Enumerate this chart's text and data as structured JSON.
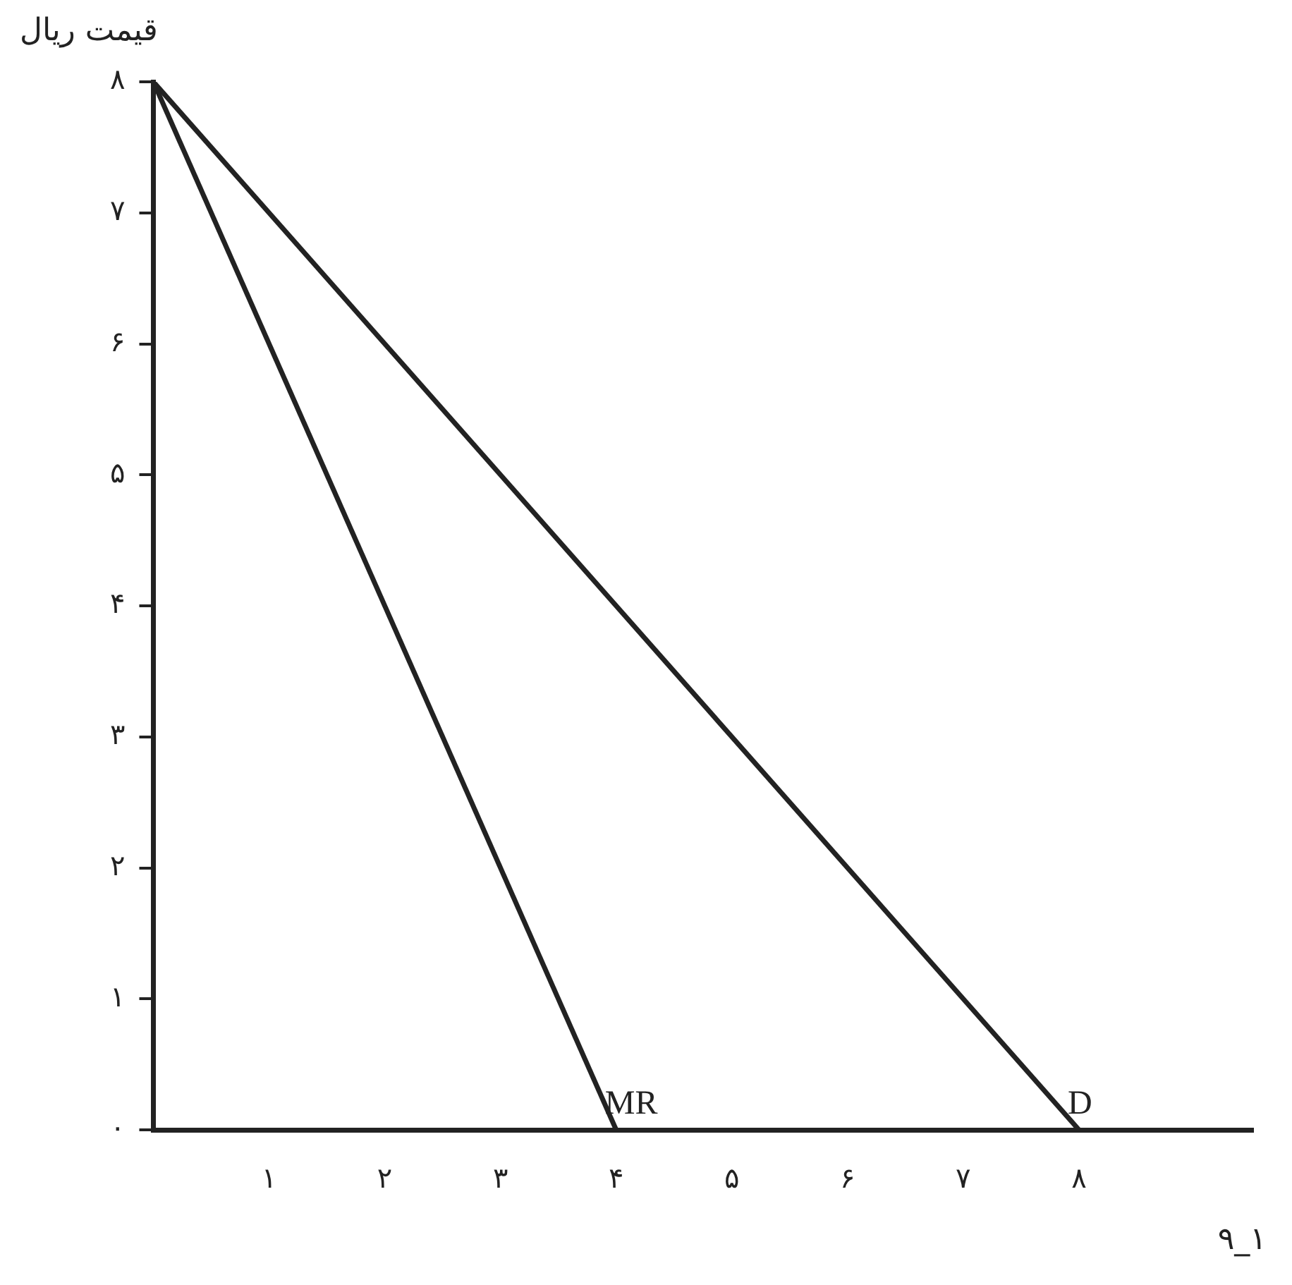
{
  "chart_data": {
    "type": "line",
    "ylabel": "قیمت ریال",
    "annotations": [
      "۹_۱"
    ],
    "xlim": [
      0,
      9.5
    ],
    "ylim": [
      0,
      8
    ],
    "xticks": [
      {
        "value": 0,
        "label": null
      },
      {
        "value": 1,
        "label": "۱"
      },
      {
        "value": 2,
        "label": "۲"
      },
      {
        "value": 3,
        "label": "۳"
      },
      {
        "value": 4,
        "label": "۴"
      },
      {
        "value": 5,
        "label": "۵"
      },
      {
        "value": 6,
        "label": "۶"
      },
      {
        "value": 7,
        "label": "۷"
      },
      {
        "value": 8,
        "label": "۸"
      }
    ],
    "yticks": [
      {
        "value": 0,
        "label": "۰"
      },
      {
        "value": 1,
        "label": "۱"
      },
      {
        "value": 2,
        "label": "۲"
      },
      {
        "value": 3,
        "label": "۳"
      },
      {
        "value": 4,
        "label": "۴"
      },
      {
        "value": 5,
        "label": "۵"
      },
      {
        "value": 6,
        "label": "۶"
      },
      {
        "value": 7,
        "label": "۷"
      },
      {
        "value": 8,
        "label": "۸"
      }
    ],
    "grid": false,
    "legend": false,
    "marker": "none",
    "line_style": "solid",
    "series": [
      {
        "name": "MR",
        "color": "#222222",
        "x": [
          0,
          4
        ],
        "values": [
          8,
          0
        ]
      },
      {
        "name": "D",
        "color": "#222222",
        "x": [
          0,
          8
        ],
        "values": [
          8,
          0
        ]
      }
    ]
  }
}
